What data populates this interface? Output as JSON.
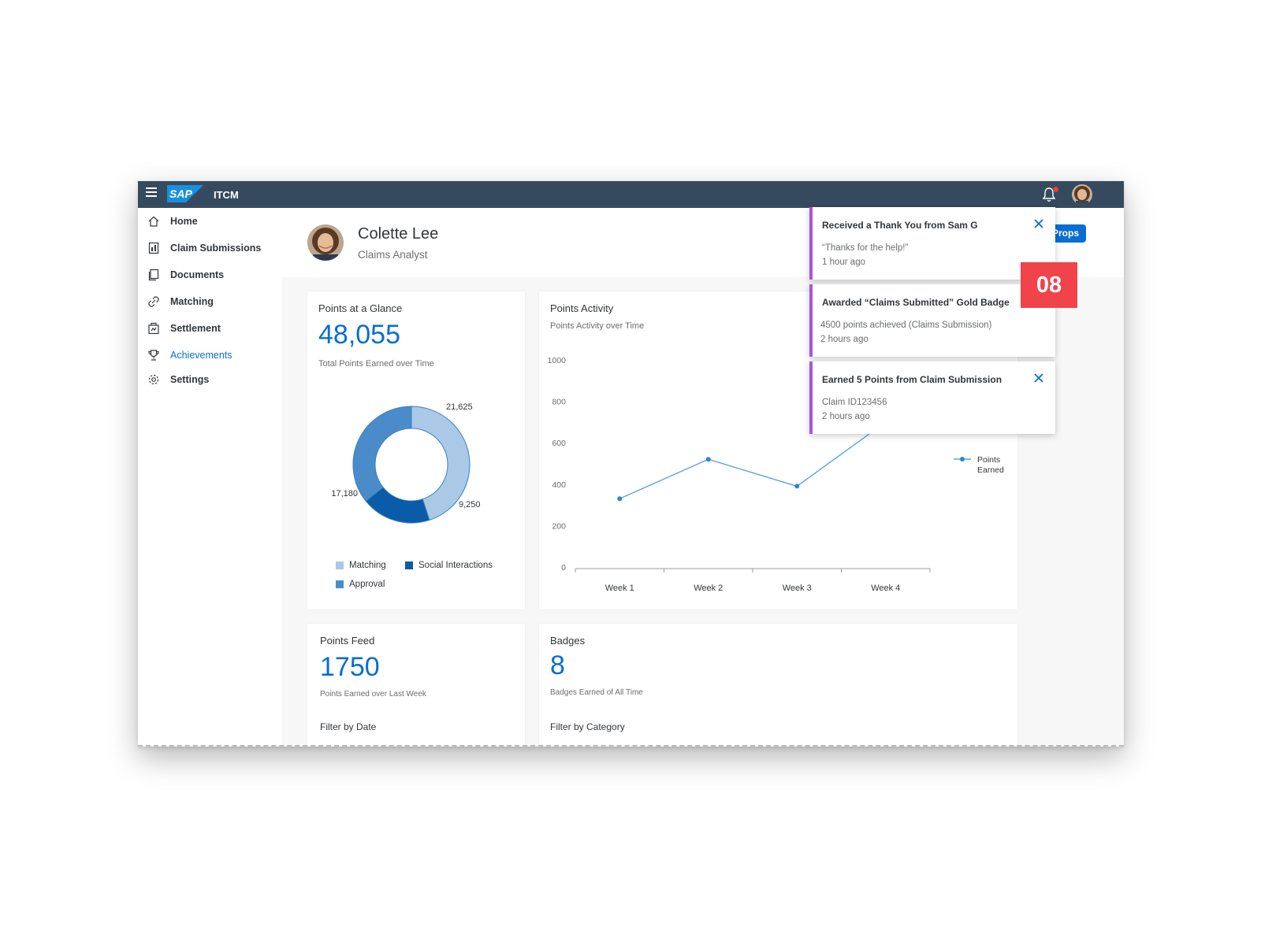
{
  "shell": {
    "app_name": "ITCM",
    "logo_text": "SAP"
  },
  "nav": {
    "items": [
      {
        "label": "Home",
        "icon": "home-icon"
      },
      {
        "label": "Claim Submissions",
        "icon": "claims-icon"
      },
      {
        "label": "Documents",
        "icon": "documents-icon"
      },
      {
        "label": "Matching",
        "icon": "link-icon"
      },
      {
        "label": "Settlement",
        "icon": "settlement-icon"
      },
      {
        "label": "Achievements",
        "icon": "trophy-icon",
        "active": true
      },
      {
        "label": "Settings",
        "icon": "gear-icon"
      }
    ]
  },
  "profile": {
    "name": "Colette Lee",
    "role": "Claims Analyst",
    "props_button": "ive Props"
  },
  "glance": {
    "title": "Points at a Glance",
    "total": "48,055",
    "subtitle": "Total Points Earned over Time",
    "legend": {
      "matching": "Matching",
      "social": "Social Interactions",
      "approval": "Approval"
    }
  },
  "activity": {
    "title": "Points Activity",
    "subtitle": "Points Activity over Time",
    "legend_line1": "Points",
    "legend_line2": "Earned"
  },
  "feed": {
    "title": "Points Feed",
    "value": "1750",
    "subtitle": "Points Earned over Last Week",
    "filter": "Filter by Date"
  },
  "badges": {
    "title": "Badges",
    "value": "8",
    "subtitle": "Badges Earned of All Time",
    "filter": "Filter by Category"
  },
  "notifications": [
    {
      "title": "Received a Thank You from Sam G",
      "line1": "“Thanks for the help!”",
      "line2": "1 hour ago",
      "closable": true
    },
    {
      "title": "Awarded “Claims Submitted” Gold Badge",
      "line1": "4500 points achieved (Claims Submission)",
      "line2": "2 hours ago",
      "closable": false
    },
    {
      "title": "Earned 5 Points from Claim Submission",
      "line1": "Claim ID123456",
      "line2": "2 hours ago",
      "closable": true
    }
  ],
  "step_badge": "08",
  "colors": {
    "shellbar": "#354a5f",
    "accent": "#0a6ed1",
    "notification_border": "#a855dd",
    "step_badge": "#f1434a"
  },
  "chart_data": [
    {
      "type": "pie",
      "variant": "donut",
      "slices": [
        {
          "name": "Matching",
          "value": 21625,
          "label": "21,625",
          "color": "#a9c9e6"
        },
        {
          "name": "Social Interactions",
          "value": 9250,
          "label": "9,250",
          "color": "#0a5ba8"
        },
        {
          "name": "Approval",
          "value": 17180,
          "label": "17,180",
          "color": "#4a8cca"
        }
      ]
    },
    {
      "type": "line",
      "categories": [
        "Week 1",
        "Week 2",
        "Week 3",
        "Week 4"
      ],
      "series": [
        {
          "name": "Points Earned",
          "values": [
            330,
            520,
            390,
            700
          ]
        }
      ],
      "ylim": [
        0,
        1000
      ],
      "yticks": [
        "0",
        "200",
        "400",
        "600",
        "800",
        "1000"
      ],
      "legend": "right",
      "color": "#5fa3dc"
    }
  ]
}
